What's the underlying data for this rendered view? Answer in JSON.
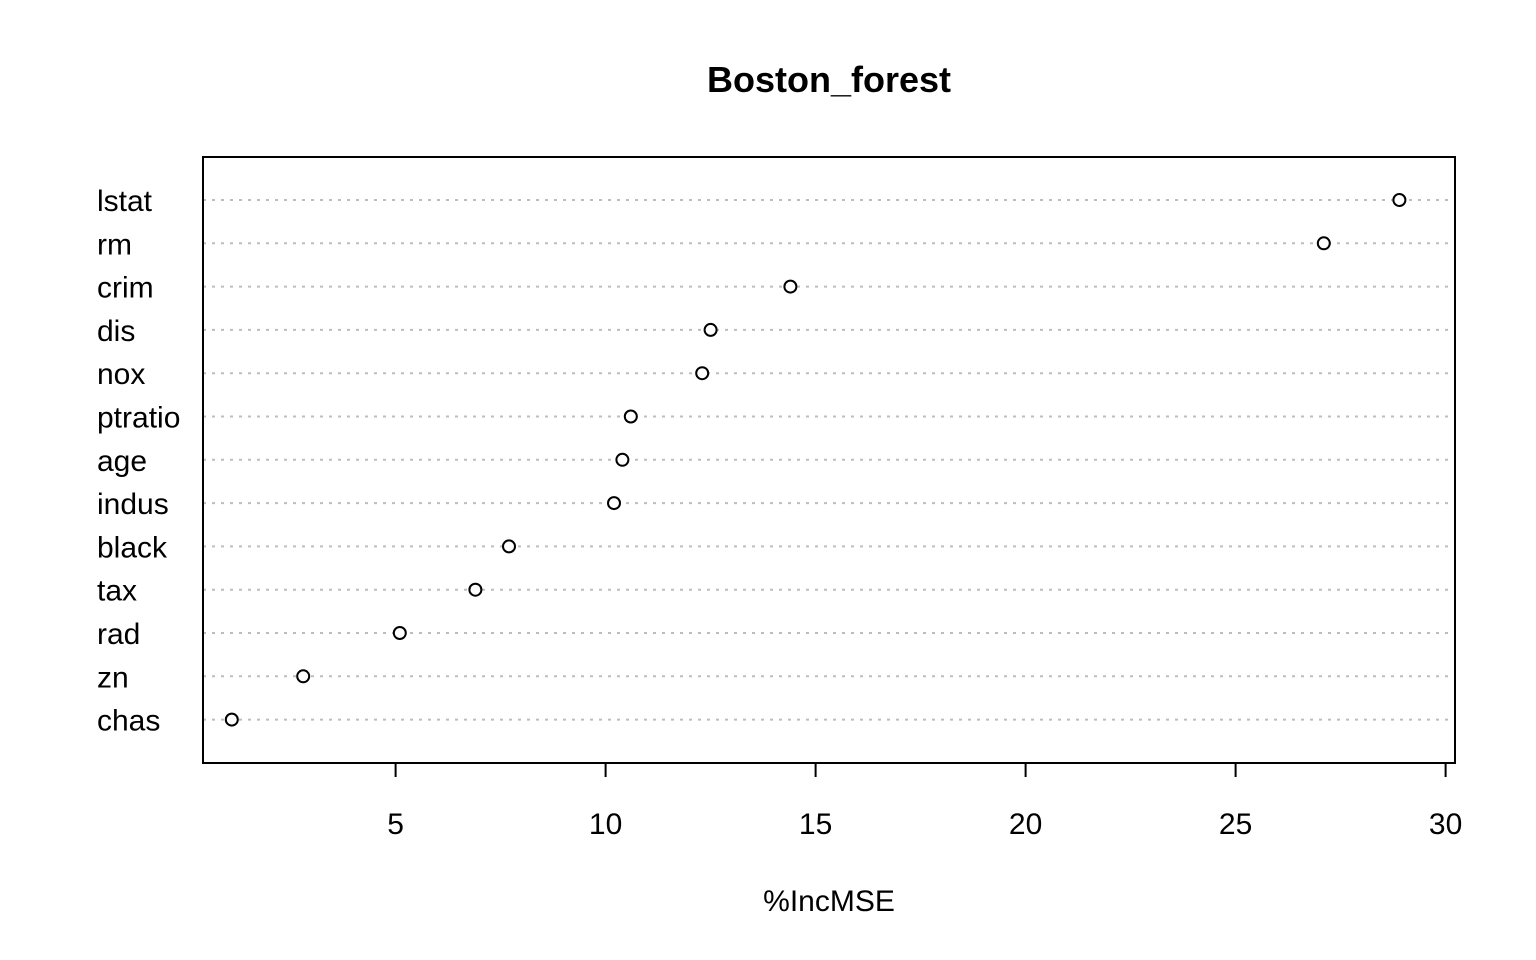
{
  "chart_data": {
    "type": "scatter",
    "subtype": "dotchart",
    "title": "Boston_forest",
    "xlabel": "%IncMSE",
    "ylabel": "",
    "xlim": [
      0.2,
      30
    ],
    "xticks": [
      5,
      10,
      15,
      20,
      25,
      30
    ],
    "grid": "dotted horizontal guide lines",
    "categories": [
      "lstat",
      "rm",
      "crim",
      "dis",
      "nox",
      "ptratio",
      "age",
      "indus",
      "black",
      "tax",
      "rad",
      "zn",
      "chas"
    ],
    "values": [
      28.9,
      27.1,
      14.4,
      12.5,
      12.3,
      10.6,
      10.4,
      10.2,
      7.7,
      6.9,
      5.1,
      2.8,
      1.1
    ]
  }
}
